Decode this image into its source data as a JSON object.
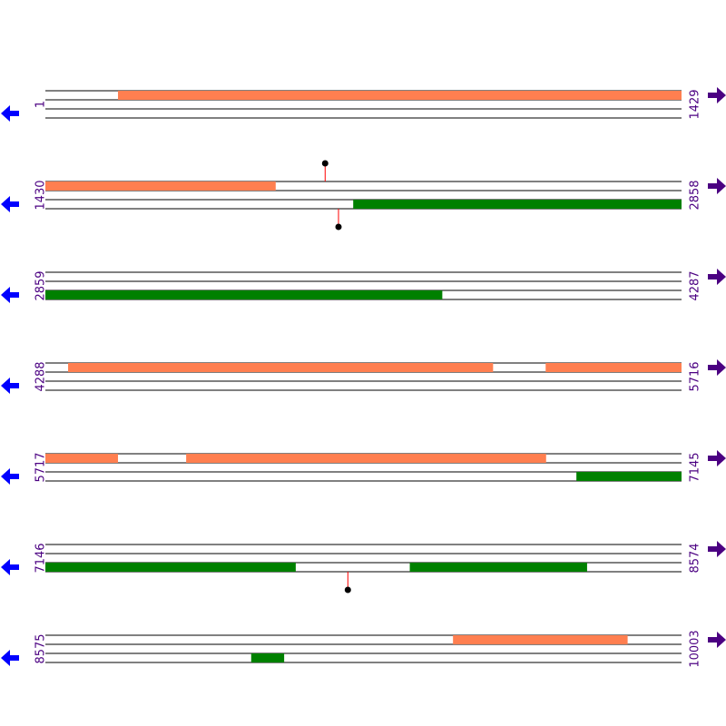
{
  "colors": {
    "forward_feature": "#FF7F50",
    "reverse_feature": "#008000",
    "track_line": "#000000",
    "marker_stem": "#FF0000",
    "marker_dot": "#000000",
    "left_arrow": "#0000FF",
    "right_arrow": "#4B0082",
    "label_text": "#4B0082"
  },
  "icons": {
    "left": "arrow-left-icon",
    "right": "arrow-right-icon"
  },
  "rows": [
    {
      "start": "1",
      "end": "1429",
      "range": [
        1,
        1429
      ],
      "features": [
        {
          "strand": "forward",
          "from": 164,
          "to": 1429
        }
      ],
      "markers": []
    },
    {
      "start": "1430",
      "end": "2858",
      "range": [
        1430,
        2858
      ],
      "features": [
        {
          "strand": "forward",
          "from": 1430,
          "to": 1947
        },
        {
          "strand": "reverse",
          "from": 2121,
          "to": 2858
        }
      ],
      "markers": [
        {
          "pos": 2058,
          "side": "top"
        },
        {
          "pos": 2088,
          "side": "bottom"
        }
      ]
    },
    {
      "start": "2859",
      "end": "4287",
      "range": [
        2859,
        4287
      ],
      "features": [
        {
          "strand": "reverse",
          "from": 2859,
          "to": 3750
        }
      ],
      "markers": []
    },
    {
      "start": "4288",
      "end": "5716",
      "range": [
        4288,
        5716
      ],
      "features": [
        {
          "strand": "forward",
          "from": 4339,
          "to": 5293
        },
        {
          "strand": "forward",
          "from": 5411,
          "to": 5716
        }
      ],
      "markers": []
    },
    {
      "start": "5717",
      "end": "7145",
      "range": [
        5717,
        7145
      ],
      "features": [
        {
          "strand": "forward",
          "from": 5717,
          "to": 5880
        },
        {
          "strand": "forward",
          "from": 6033,
          "to": 6841
        },
        {
          "strand": "reverse",
          "from": 6909,
          "to": 7145
        }
      ],
      "markers": []
    },
    {
      "start": "7146",
      "end": "8574",
      "range": [
        7146,
        8574
      ],
      "features": [
        {
          "strand": "reverse",
          "from": 7146,
          "to": 7708
        },
        {
          "strand": "reverse",
          "from": 7964,
          "to": 8362
        }
      ],
      "markers": [
        {
          "pos": 7825,
          "side": "bottom"
        }
      ]
    },
    {
      "start": "8575",
      "end": "10003",
      "range": [
        8575,
        10003
      ],
      "features": [
        {
          "strand": "forward",
          "from": 9490,
          "to": 9882
        },
        {
          "strand": "reverse",
          "from": 9037,
          "to": 9111
        }
      ],
      "markers": []
    }
  ]
}
